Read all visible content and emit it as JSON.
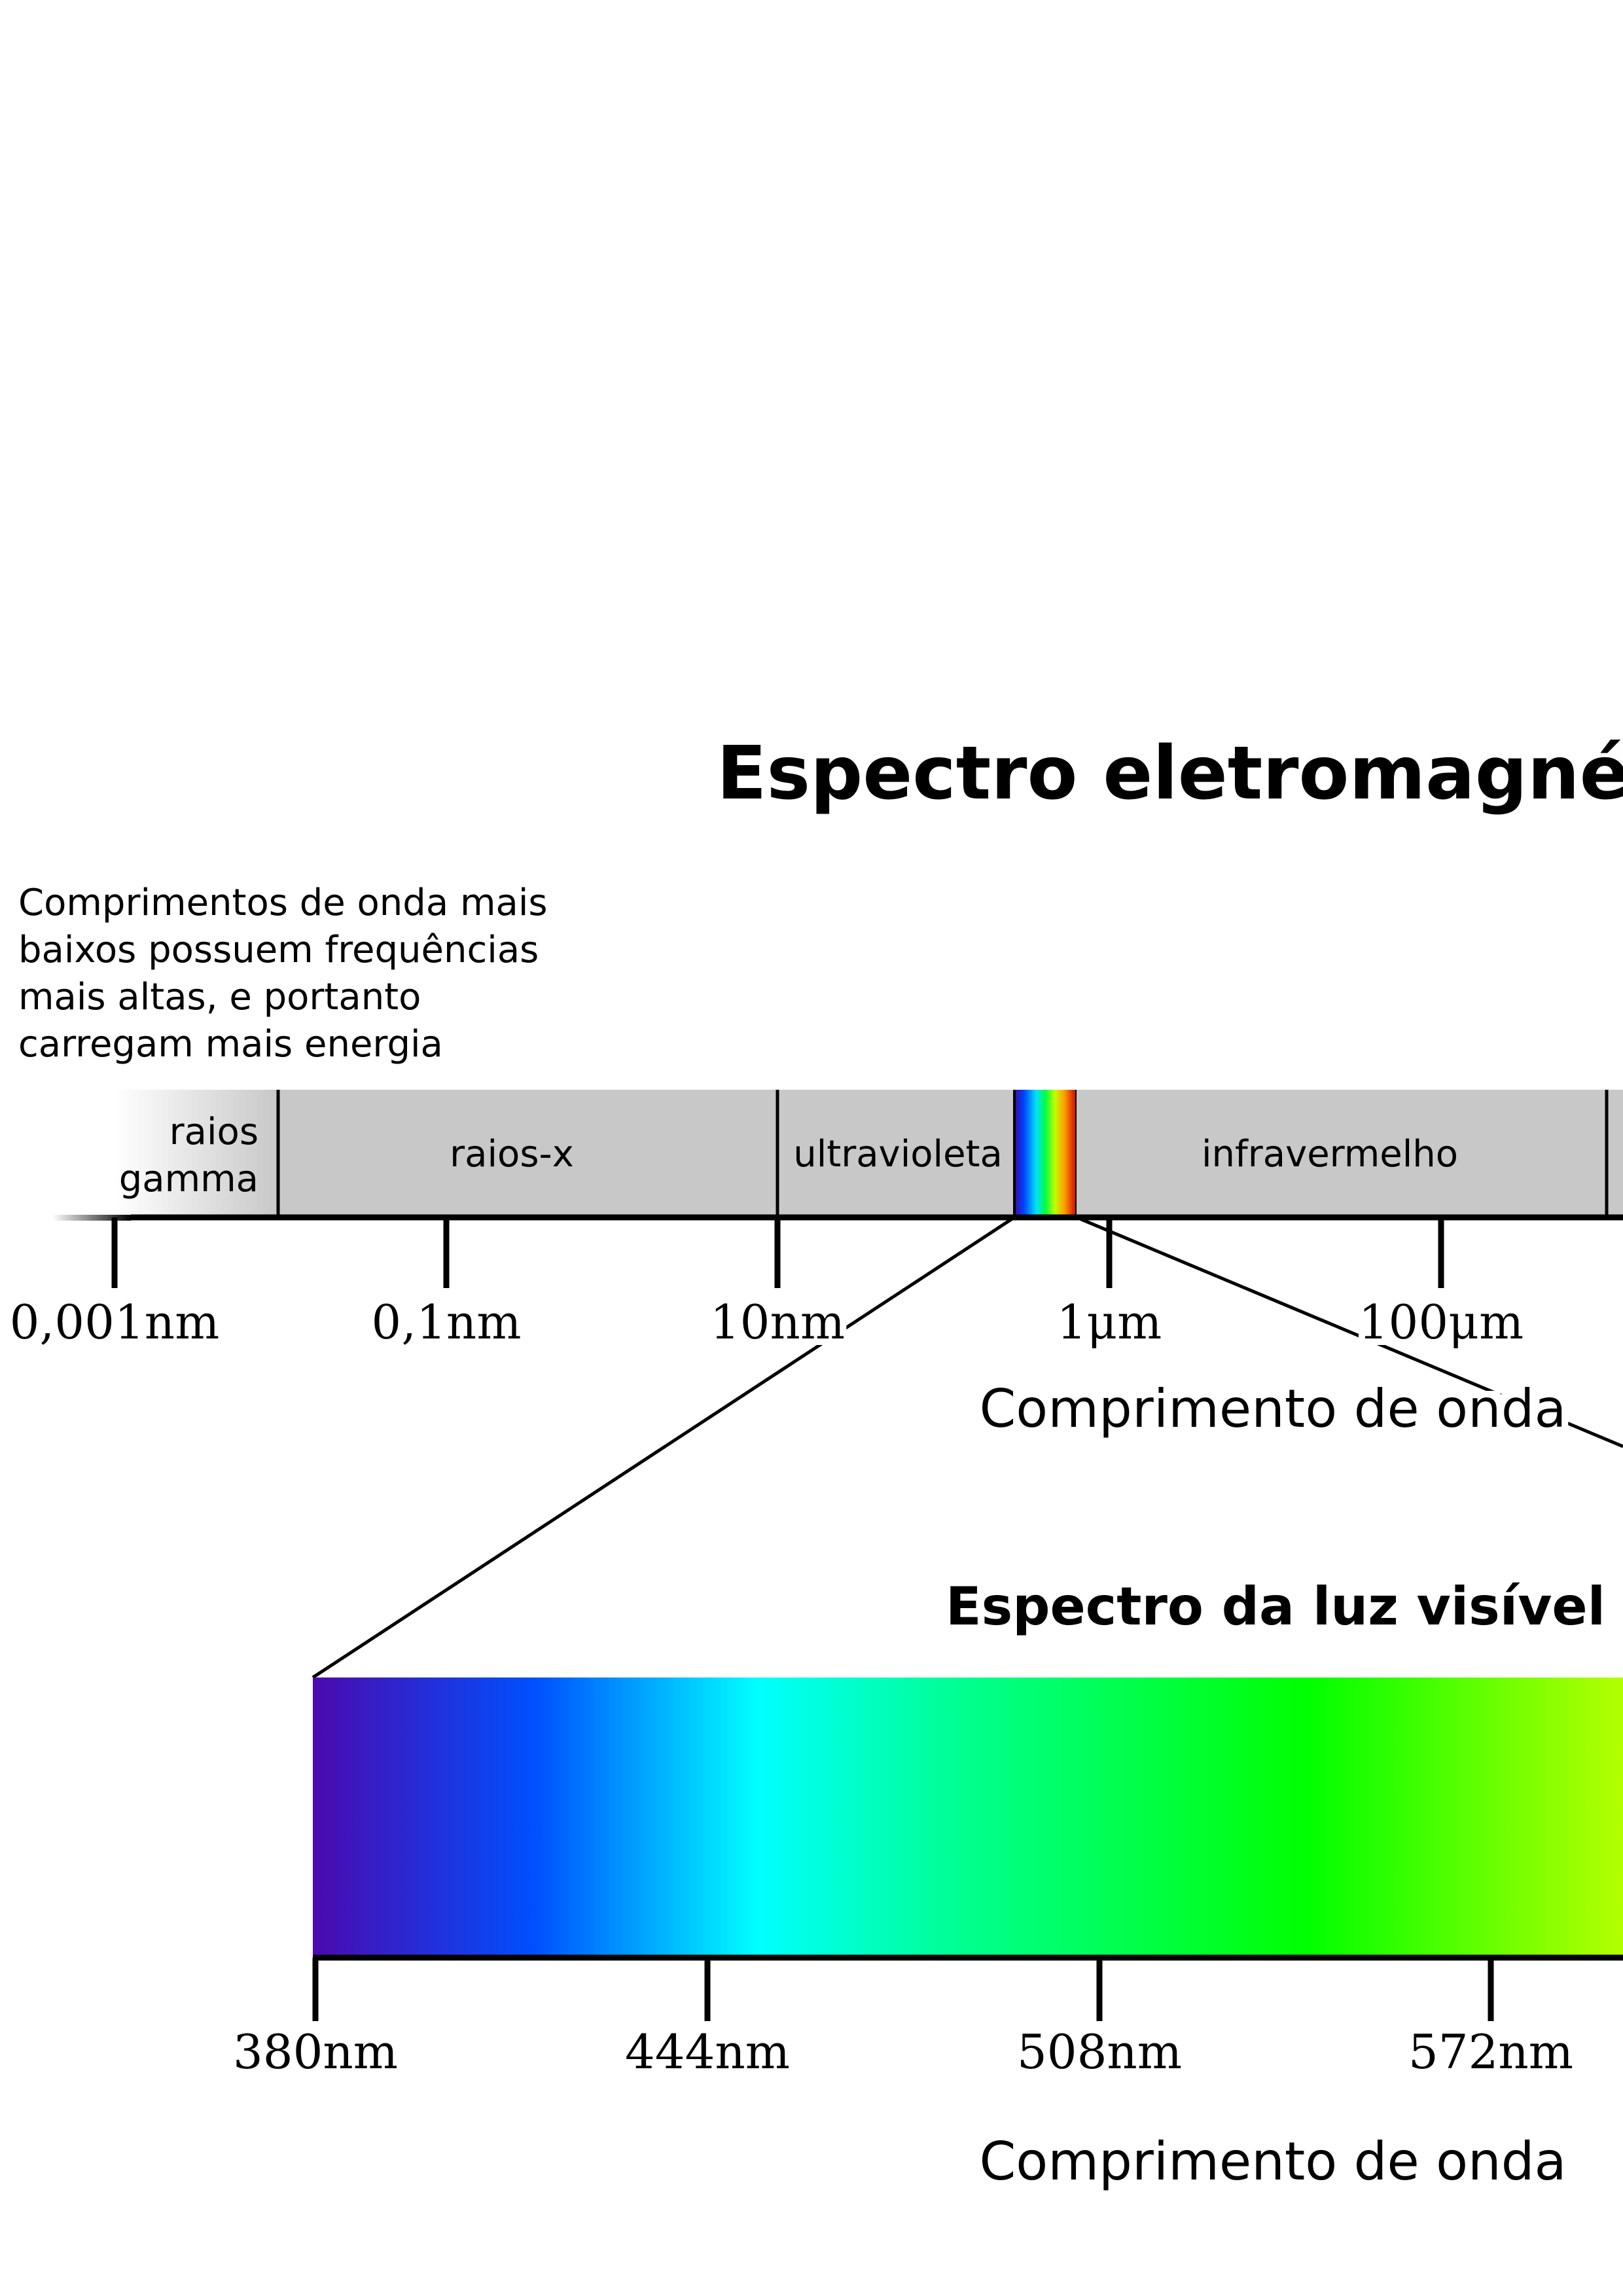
{
  "main_title": "Espectro eletromagnético",
  "note_lines": [
    "Comprimentos de onda mais",
    "baixos possuem frequências",
    "mais altas, e portanto",
    "carregam mais energia"
  ],
  "bands": {
    "gamma_line1": "raios",
    "gamma_line2": "gamma",
    "xray": "raios-x",
    "uv": "ultravioleta",
    "ir": "infravermelho"
  },
  "em_ticks": [
    "0,001nm",
    "0,1nm",
    "10nm",
    "1μm",
    "100μm"
  ],
  "em_axis_label": "Comprimento de onda",
  "visible_title": "Espectro da luz visível",
  "visible_ticks": [
    "380nm",
    "444nm",
    "508nm",
    "572nm"
  ],
  "visible_axis_label": "Comprimento de onda",
  "colors": {
    "band_fill": "#c8c8c8",
    "axis": "#000000",
    "violet": "#4b0aaf",
    "blue": "#0050ff",
    "cyan": "#00ffff",
    "green": "#00ff00",
    "yellow_green": "#b4ff00"
  }
}
